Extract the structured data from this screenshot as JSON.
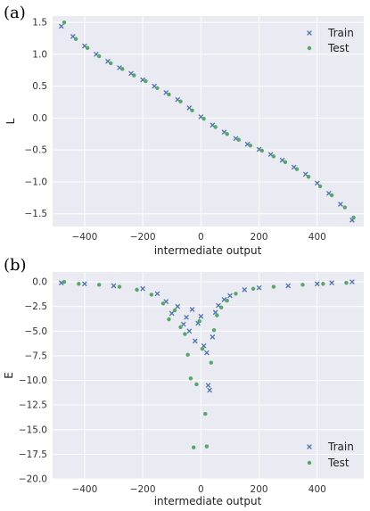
{
  "colors": {
    "train": "#4c72b0",
    "test": "#55a868",
    "plot_bg": "#eaeaf2",
    "grid": "#ffffff"
  },
  "chart_data": [
    {
      "type": "scatter",
      "panel_label": "(a)",
      "xlabel": "intermediate output",
      "ylabel": "L",
      "xlim": [
        -510,
        560
      ],
      "ylim": [
        -1.7,
        1.6
      ],
      "xticks": [
        -400,
        -200,
        0,
        200,
        400
      ],
      "xtick_labels": [
        "−400",
        "−200",
        "0",
        "200",
        "400"
      ],
      "yticks": [
        1.5,
        1.0,
        0.5,
        0.0,
        -0.5,
        -1.0,
        -1.5
      ],
      "ytick_labels": [
        "1.5",
        "1.0",
        "0.5",
        "0.0",
        "−0.5",
        "−1.0",
        "−1.5"
      ],
      "grid": true,
      "legend": {
        "position": "top-right",
        "entries": [
          "Train",
          "Test"
        ]
      },
      "series": [
        {
          "name": "Train",
          "marker": "x",
          "color": "#4c72b0",
          "x": [
            -480,
            -440,
            -400,
            -360,
            -320,
            -280,
            -240,
            -200,
            -160,
            -120,
            -80,
            -40,
            0,
            40,
            80,
            120,
            160,
            200,
            240,
            280,
            320,
            360,
            400,
            440,
            480,
            520
          ],
          "y": [
            1.44,
            1.28,
            1.13,
            1.0,
            0.89,
            0.79,
            0.7,
            0.6,
            0.5,
            0.4,
            0.29,
            0.16,
            0.02,
            -0.11,
            -0.22,
            -0.32,
            -0.41,
            -0.49,
            -0.57,
            -0.66,
            -0.77,
            -0.88,
            -1.02,
            -1.18,
            -1.35,
            -1.6
          ]
        },
        {
          "name": "Test",
          "marker": "dot",
          "color": "#55a868",
          "x": [
            -470,
            -430,
            -390,
            -350,
            -310,
            -270,
            -230,
            -190,
            -150,
            -110,
            -70,
            -30,
            10,
            50,
            90,
            130,
            170,
            210,
            250,
            290,
            330,
            370,
            410,
            450,
            495,
            525
          ],
          "y": [
            1.5,
            1.24,
            1.1,
            0.97,
            0.86,
            0.77,
            0.67,
            0.58,
            0.47,
            0.37,
            0.26,
            0.12,
            -0.01,
            -0.14,
            -0.25,
            -0.34,
            -0.43,
            -0.51,
            -0.6,
            -0.69,
            -0.8,
            -0.92,
            -1.07,
            -1.21,
            -1.4,
            -1.56
          ]
        }
      ]
    },
    {
      "type": "scatter",
      "panel_label": "(b)",
      "xlabel": "intermediate output",
      "ylabel": "E",
      "xlim": [
        -510,
        560
      ],
      "ylim": [
        -20.0,
        1.0
      ],
      "xticks": [
        -400,
        -200,
        0,
        200,
        400
      ],
      "xtick_labels": [
        "−400",
        "−200",
        "0",
        "200",
        "400"
      ],
      "yticks": [
        0.0,
        -2.5,
        -5.0,
        -7.5,
        -10.0,
        -12.5,
        -15.0,
        -17.5,
        -20.0
      ],
      "ytick_labels": [
        "0.0",
        "−2.5",
        "−5.0",
        "−7.5",
        "−10.0",
        "−12.5",
        "−15.0",
        "−17.5",
        "−20.0"
      ],
      "grid": true,
      "legend": {
        "position": "bottom-right",
        "entries": [
          "Train",
          "Test"
        ]
      },
      "series": [
        {
          "name": "Train",
          "marker": "x",
          "color": "#4c72b0",
          "x": [
            -480,
            -400,
            -300,
            -200,
            -150,
            -120,
            -100,
            -80,
            -60,
            -50,
            -40,
            -30,
            -20,
            -10,
            0,
            10,
            20,
            25,
            30,
            40,
            50,
            60,
            80,
            100,
            150,
            200,
            300,
            400,
            450,
            520
          ],
          "y": [
            -0.1,
            -0.2,
            -0.4,
            -0.7,
            -1.2,
            -2.0,
            -3.2,
            -2.5,
            -4.3,
            -3.6,
            -5.0,
            -2.8,
            -6.0,
            -4.2,
            -3.5,
            -6.5,
            -7.2,
            -10.5,
            -11.0,
            -5.6,
            -3.1,
            -2.4,
            -1.8,
            -1.4,
            -0.8,
            -0.6,
            -0.4,
            -0.2,
            -0.1,
            0.0
          ]
        },
        {
          "name": "Test",
          "marker": "dot",
          "color": "#55a868",
          "x": [
            -470,
            -420,
            -350,
            -280,
            -220,
            -170,
            -130,
            -110,
            -90,
            -70,
            -55,
            -45,
            -35,
            -25,
            -15,
            -5,
            5,
            15,
            20,
            35,
            45,
            55,
            70,
            90,
            120,
            180,
            250,
            350,
            420,
            500
          ],
          "y": [
            0.0,
            -0.2,
            -0.3,
            -0.5,
            -0.8,
            -1.3,
            -2.2,
            -3.8,
            -2.9,
            -4.6,
            -5.3,
            -7.4,
            -9.8,
            -16.8,
            -10.4,
            -4.0,
            -6.8,
            -13.4,
            -16.7,
            -8.2,
            -4.9,
            -3.4,
            -2.6,
            -1.9,
            -1.2,
            -0.7,
            -0.5,
            -0.3,
            -0.2,
            -0.1
          ]
        }
      ]
    }
  ]
}
